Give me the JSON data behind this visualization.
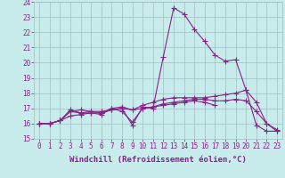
{
  "xlabel": "Windchill (Refroidissement éolien,°C)",
  "ylabel": "",
  "bg_color": "#c8ecec",
  "grid_color": "#a0c0c0",
  "line_color": "#882288",
  "xlim": [
    -0.5,
    23.5
  ],
  "ylim": [
    15,
    24
  ],
  "yticks": [
    15,
    16,
    17,
    18,
    19,
    20,
    21,
    22,
    23,
    24
  ],
  "xticks": [
    0,
    1,
    2,
    3,
    4,
    5,
    6,
    7,
    8,
    9,
    10,
    11,
    12,
    13,
    14,
    15,
    16,
    17,
    18,
    19,
    20,
    21,
    22,
    23
  ],
  "lines": [
    {
      "x": [
        0,
        1,
        2,
        3,
        4,
        5,
        6,
        7,
        8,
        9,
        10,
        11,
        12,
        13,
        14,
        15,
        16,
        17,
        18,
        19,
        20,
        21,
        22,
        23
      ],
      "y": [
        16.0,
        16.0,
        16.2,
        16.8,
        16.9,
        16.8,
        16.8,
        16.9,
        17.0,
        15.9,
        17.1,
        17.0,
        20.4,
        23.6,
        23.2,
        22.2,
        21.4,
        20.5,
        20.1,
        20.2,
        18.2,
        15.9,
        15.5,
        15.5
      ]
    },
    {
      "x": [
        0,
        1,
        2,
        3,
        4,
        5,
        6,
        7,
        8,
        9,
        10,
        11,
        12,
        13,
        14,
        15,
        16,
        17,
        18,
        19,
        20,
        21,
        22,
        23
      ],
      "y": [
        16.0,
        16.0,
        16.2,
        16.5,
        16.6,
        16.7,
        16.7,
        17.0,
        17.1,
        16.9,
        17.2,
        17.4,
        17.6,
        17.7,
        17.7,
        17.7,
        17.7,
        17.8,
        17.9,
        18.0,
        18.2,
        17.4,
        16.0,
        15.5
      ]
    },
    {
      "x": [
        0,
        1,
        2,
        3,
        4,
        5,
        6,
        7,
        8,
        9,
        10,
        11,
        12,
        13,
        14,
        15,
        16,
        17,
        18,
        19,
        20,
        21,
        22,
        23
      ],
      "y": [
        16.0,
        16.0,
        16.2,
        16.8,
        16.7,
        16.7,
        16.6,
        17.0,
        16.8,
        16.1,
        17.0,
        17.1,
        17.3,
        17.4,
        17.5,
        17.6,
        17.6,
        17.5,
        17.5,
        17.6,
        17.5,
        16.8,
        16.0,
        15.6
      ]
    },
    {
      "x": [
        0,
        1,
        2,
        3,
        4,
        5,
        6,
        7,
        8,
        9,
        10,
        11,
        12,
        13,
        14,
        15,
        16,
        17
      ],
      "y": [
        16.0,
        16.0,
        16.2,
        16.9,
        16.7,
        16.8,
        16.7,
        16.9,
        17.0,
        16.9,
        17.0,
        17.1,
        17.2,
        17.3,
        17.4,
        17.5,
        17.4,
        17.2
      ]
    }
  ],
  "marker": "+",
  "markersize": 4,
  "linewidth": 0.8,
  "tick_fontsize": 5.5,
  "xlabel_fontsize": 6.5
}
